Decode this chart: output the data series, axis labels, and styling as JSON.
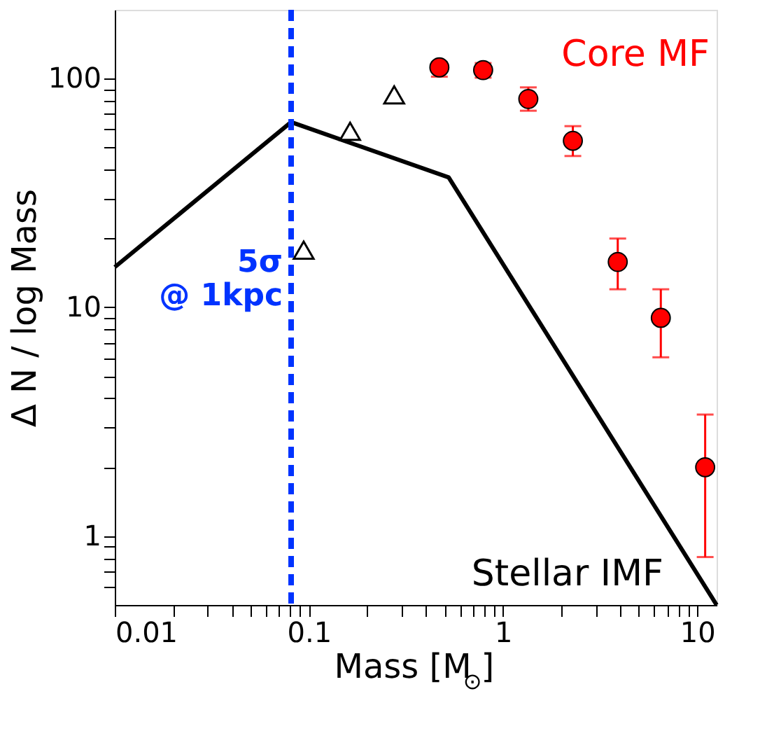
{
  "chart_data": {
    "type": "scatter",
    "xlabel": "Mass  [M$_{⊙}$]",
    "ylabel": "Δ N / log Mass",
    "log": "xy",
    "grid": false,
    "xlim": [
      0.01,
      12.6
    ],
    "ylim": [
      0.5,
      200
    ],
    "xticks": [
      0.01,
      {
        "value": 0.02,
        "label": null
      },
      {
        "value": 0.03,
        "label": null
      },
      {
        "value": 0.04,
        "label": null
      },
      {
        "value": 0.05,
        "label": null
      },
      {
        "value": 0.06,
        "label": null
      },
      {
        "value": 0.07,
        "label": null
      },
      {
        "value": 0.08,
        "label": null
      },
      {
        "value": 0.09,
        "label": null
      },
      0.1,
      {
        "value": 0.2,
        "label": null
      },
      {
        "value": 0.3,
        "label": null
      },
      {
        "value": 0.4,
        "label": null
      },
      {
        "value": 0.5,
        "label": null
      },
      {
        "value": 0.6,
        "label": null
      },
      {
        "value": 0.7,
        "label": null
      },
      {
        "value": 0.8,
        "label": null
      },
      {
        "value": 0.9,
        "label": null
      },
      1,
      {
        "value": 2,
        "label": null
      },
      {
        "value": 3,
        "label": null
      },
      {
        "value": 4,
        "label": null
      },
      {
        "value": 5,
        "label": null
      },
      {
        "value": 6,
        "label": null
      },
      {
        "value": 7,
        "label": null
      },
      {
        "value": 8,
        "label": null
      },
      {
        "value": 9,
        "label": null
      },
      10
    ],
    "yticks": [
      {
        "value": 0.6,
        "label": null
      },
      {
        "value": 0.7,
        "label": null
      },
      {
        "value": 0.8,
        "label": null
      },
      {
        "value": 0.9,
        "label": null
      },
      1,
      {
        "value": 2,
        "label": null
      },
      {
        "value": 3,
        "label": null
      },
      {
        "value": 4,
        "label": null
      },
      {
        "value": 5,
        "label": null
      },
      {
        "value": 6,
        "label": null
      },
      {
        "value": 7,
        "label": null
      },
      {
        "value": 8,
        "label": null
      },
      {
        "value": 9,
        "label": null
      },
      10,
      {
        "value": 20,
        "label": null
      },
      {
        "value": 30,
        "label": null
      },
      {
        "value": 40,
        "label": null
      },
      {
        "value": 50,
        "label": null
      },
      {
        "value": 60,
        "label": null
      },
      {
        "value": 70,
        "label": null
      },
      {
        "value": 80,
        "label": null
      },
      {
        "value": 90,
        "label": null
      },
      100
    ],
    "series": [
      {
        "name": "Stellar IMF",
        "type": "line",
        "color": "#000000",
        "marker": "none",
        "line_style": "solid",
        "x": [
          0.01,
          0.081,
          0.525,
          12.6
        ],
        "values": [
          15,
          64.6,
          37,
          0.5
        ]
      },
      {
        "name": "Core MF",
        "color": "#ff0000",
        "marker": "circle",
        "x": [
          0.47,
          0.79,
          1.35,
          2.29,
          3.9,
          6.5,
          11
        ],
        "values": [
          112,
          109,
          81.5,
          53.5,
          15.8,
          9.0,
          2.0
        ],
        "errors": [
          [
            102,
            118
          ],
          [
            101,
            117
          ],
          [
            72.4,
            91.6
          ],
          [
            45.9,
            62
          ],
          [
            12,
            20
          ],
          [
            6.05,
            12
          ],
          [
            0.81,
            3.4
          ]
        ]
      },
      {
        "color": "#000000",
        "marker": "triangle",
        "x": [
          0.094,
          0.163,
          0.275
        ],
        "values": [
          17.8,
          58.9,
          85
        ]
      }
    ],
    "ref_lines": [
      {
        "axis": "x",
        "value": 0.081,
        "label": "5σ\n@ 1kpc",
        "color": "#0033ff",
        "line_style": "dashed"
      }
    ]
  }
}
